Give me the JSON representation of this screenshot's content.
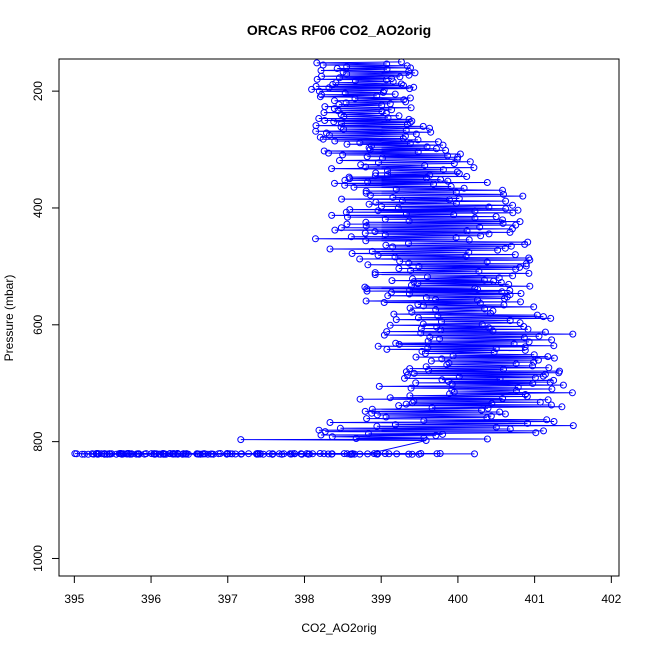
{
  "chart_data": {
    "type": "scatter",
    "title": "ORCAS RF06 CO2_AO2orig",
    "xlabel": "CO2_AO2orig",
    "ylabel": "Pressure (mbar)",
    "xlim": [
      394.8,
      402.1
    ],
    "ylim": [
      1030,
      145
    ],
    "y_axis_inverted": true,
    "x_ticks": [
      395,
      396,
      397,
      398,
      399,
      400,
      401,
      402
    ],
    "y_ticks": [
      200,
      400,
      600,
      800,
      1000
    ],
    "series": [
      {
        "color": "#0000ff",
        "marker": "open-circle",
        "connect_points": true,
        "profile_summary": [
          {
            "pressure": 150,
            "x_range": [
              398.0,
              399.6
            ]
          },
          {
            "pressure": 250,
            "x_range": [
              397.9,
              399.7
            ]
          },
          {
            "pressure": 330,
            "x_range": [
              398.1,
              400.5
            ]
          },
          {
            "pressure": 420,
            "x_range": [
              398.0,
              401.3
            ]
          },
          {
            "pressure": 520,
            "x_range": [
              398.4,
              401.3
            ]
          },
          {
            "pressure": 600,
            "x_range": [
              398.6,
              401.5
            ]
          },
          {
            "pressure": 700,
            "x_range": [
              399.0,
              401.7
            ]
          },
          {
            "pressure": 780,
            "x_range": [
              397.7,
              401.8
            ]
          },
          {
            "pressure": 821,
            "x_range": [
              395.0,
              400.7
            ]
          }
        ]
      }
    ],
    "grid": false,
    "legend": "none"
  }
}
